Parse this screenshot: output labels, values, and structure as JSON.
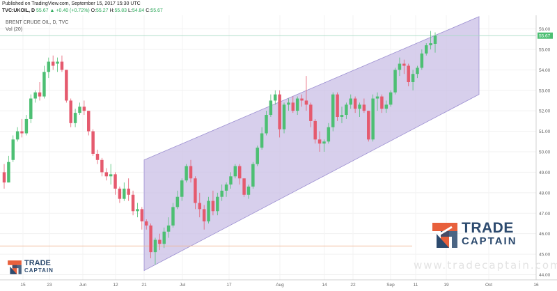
{
  "header": {
    "published": "Published on TradingView.com, September 15, 2017 15:30 UTC",
    "symbol": "TVC:UKOIL, D",
    "last": "55.67",
    "change": "+0.40 (+0.72%)",
    "o_label": "O:",
    "o_val": "55.27",
    "h_label": "H:",
    "h_val": "55.83",
    "l_label": "L:",
    "l_val": "54.84",
    "c_label": "C:",
    "c_val": "55.67"
  },
  "legend": {
    "title": "BRENT CRUDE OIL, D, TVC",
    "volume": "Vol (20)"
  },
  "brand": {
    "name_top": "TRADE",
    "name_bottom": "CAPTAIN",
    "url": "www.tradecaptain.com"
  },
  "colors": {
    "up": "#4dbf73",
    "down": "#e55a6e",
    "channel": "#c9bfe6",
    "channel_edge": "#9b8ed1",
    "price_line": "#a6d9c4",
    "support_line": "#f0b490",
    "logo_orange": "#e8603c",
    "logo_navy": "#2c4a6e"
  },
  "chart_data": {
    "type": "candlestick",
    "y_axis": {
      "min": 44,
      "max": 56,
      "ticks": [
        "44.00",
        "45.00",
        "46.00",
        "47.00",
        "48.00",
        "49.00",
        "50.00",
        "51.00",
        "52.00",
        "53.00",
        "54.00",
        "55.00",
        "56.00"
      ]
    },
    "x_ticks": [
      "15",
      "23",
      "Jun",
      "12",
      "21",
      "Jul",
      "17",
      "Aug",
      "14",
      "22",
      "Sep",
      "11",
      "19",
      "Oct",
      "16"
    ],
    "last_price_label": "55.67",
    "last_price": 55.67,
    "support_level": 45.4,
    "channel": {
      "upper": [
        {
          "date": "Jun 21",
          "price": 49.6
        },
        {
          "date": "Sep 21",
          "price": 56.6
        }
      ],
      "lower": [
        {
          "date": "Jun 21",
          "price": 44.2
        },
        {
          "date": "Sep 21",
          "price": 52.8
        }
      ]
    },
    "candles": [
      [
        49.0,
        49.4,
        48.2,
        48.5
      ],
      [
        48.5,
        49.8,
        48.5,
        49.5
      ],
      [
        49.6,
        50.8,
        49.5,
        50.6
      ],
      [
        50.6,
        51.2,
        50.5,
        51.0
      ],
      [
        51.0,
        51.6,
        50.7,
        50.9
      ],
      [
        50.9,
        51.8,
        50.8,
        51.6
      ],
      [
        51.6,
        52.8,
        51.4,
        52.6
      ],
      [
        52.6,
        53.0,
        52.4,
        52.9
      ],
      [
        52.9,
        53.4,
        52.5,
        52.7
      ],
      [
        52.7,
        54.2,
        52.6,
        53.9
      ],
      [
        53.9,
        54.6,
        53.6,
        54.4
      ],
      [
        54.4,
        54.7,
        54.0,
        54.2
      ],
      [
        54.3,
        54.6,
        53.9,
        54.4
      ],
      [
        54.4,
        54.7,
        53.9,
        54.0
      ],
      [
        54.0,
        54.0,
        52.4,
        52.5
      ],
      [
        52.5,
        52.6,
        51.2,
        51.4
      ],
      [
        51.4,
        52.1,
        51.2,
        51.9
      ],
      [
        51.9,
        52.4,
        51.8,
        52.2
      ],
      [
        52.2,
        52.5,
        51.8,
        52.0
      ],
      [
        52.0,
        52.0,
        50.8,
        51.0
      ],
      [
        51.0,
        51.1,
        49.8,
        49.9
      ],
      [
        49.9,
        50.1,
        49.4,
        49.6
      ],
      [
        49.6,
        49.7,
        48.8,
        49.0
      ],
      [
        49.0,
        49.2,
        48.6,
        48.8
      ],
      [
        48.8,
        49.4,
        48.4,
        48.9
      ],
      [
        48.9,
        49.0,
        47.9,
        48.2
      ],
      [
        48.2,
        48.3,
        47.5,
        47.7
      ],
      [
        47.7,
        48.5,
        47.6,
        48.2
      ],
      [
        48.2,
        48.7,
        47.6,
        47.9
      ],
      [
        47.9,
        48.1,
        46.9,
        47.1
      ],
      [
        47.1,
        47.5,
        46.8,
        47.2
      ],
      [
        47.2,
        47.3,
        46.2,
        46.6
      ],
      [
        46.6,
        46.7,
        46.2,
        46.4
      ],
      [
        46.4,
        46.5,
        44.8,
        45.1
      ],
      [
        45.1,
        45.8,
        44.5,
        45.7
      ],
      [
        45.7,
        46.0,
        45.2,
        45.5
      ],
      [
        45.5,
        46.3,
        45.3,
        46.1
      ],
      [
        46.1,
        46.8,
        45.8,
        46.4
      ],
      [
        46.4,
        47.5,
        46.3,
        47.3
      ],
      [
        47.3,
        48.1,
        47.2,
        47.8
      ],
      [
        47.8,
        48.7,
        47.6,
        48.6
      ],
      [
        48.6,
        49.4,
        48.5,
        49.3
      ],
      [
        49.3,
        49.6,
        48.5,
        48.7
      ],
      [
        48.7,
        48.8,
        47.2,
        47.5
      ],
      [
        47.5,
        48.0,
        46.8,
        47.2
      ],
      [
        47.2,
        47.4,
        46.2,
        46.6
      ],
      [
        46.6,
        47.8,
        46.5,
        47.6
      ],
      [
        47.6,
        48.1,
        46.9,
        47.1
      ],
      [
        47.1,
        48.0,
        46.9,
        47.8
      ],
      [
        47.8,
        48.4,
        47.6,
        48.1
      ],
      [
        48.1,
        48.5,
        47.8,
        48.4
      ],
      [
        48.4,
        49.0,
        48.2,
        48.8
      ],
      [
        48.8,
        49.4,
        48.7,
        49.3
      ],
      [
        49.3,
        49.4,
        48.4,
        48.7
      ],
      [
        48.7,
        48.7,
        47.8,
        47.9
      ],
      [
        47.9,
        48.4,
        47.7,
        48.3
      ],
      [
        48.3,
        49.5,
        48.2,
        49.4
      ],
      [
        49.4,
        50.3,
        49.3,
        50.2
      ],
      [
        50.2,
        51.2,
        50.1,
        50.9
      ],
      [
        50.9,
        52.0,
        50.8,
        51.8
      ],
      [
        51.8,
        52.8,
        51.7,
        52.5
      ],
      [
        52.5,
        53.0,
        52.3,
        52.8
      ],
      [
        52.8,
        53.0,
        50.7,
        51.1
      ],
      [
        51.1,
        52.4,
        50.9,
        52.3
      ],
      [
        52.3,
        52.6,
        52.0,
        52.4
      ],
      [
        52.4,
        52.7,
        51.9,
        52.0
      ],
      [
        52.0,
        52.7,
        51.8,
        52.6
      ],
      [
        52.6,
        52.8,
        52.2,
        52.5
      ],
      [
        52.5,
        53.7,
        52.0,
        52.3
      ],
      [
        52.3,
        52.4,
        51.2,
        51.5
      ],
      [
        51.5,
        51.6,
        50.4,
        50.6
      ],
      [
        50.6,
        51.0,
        50.0,
        50.4
      ],
      [
        50.4,
        50.6,
        50.0,
        50.5
      ],
      [
        50.5,
        51.4,
        50.4,
        51.2
      ],
      [
        51.2,
        52.9,
        51.0,
        52.8
      ],
      [
        52.8,
        52.9,
        51.5,
        51.7
      ],
      [
        51.7,
        52.2,
        51.4,
        51.8
      ],
      [
        51.8,
        52.4,
        51.6,
        52.3
      ],
      [
        52.3,
        52.8,
        52.1,
        52.6
      ],
      [
        52.6,
        52.7,
        51.9,
        52.1
      ],
      [
        52.1,
        52.4,
        51.7,
        52.3
      ],
      [
        52.3,
        52.6,
        51.9,
        52.0
      ],
      [
        52.0,
        52.0,
        50.5,
        50.6
      ],
      [
        50.6,
        52.8,
        50.5,
        52.6
      ],
      [
        52.6,
        52.9,
        52.0,
        52.7
      ],
      [
        52.7,
        52.8,
        51.9,
        52.1
      ],
      [
        52.1,
        52.5,
        51.9,
        52.3
      ],
      [
        52.3,
        53.0,
        52.2,
        52.9
      ],
      [
        52.9,
        54.1,
        52.8,
        54.0
      ],
      [
        54.0,
        54.6,
        53.7,
        54.3
      ],
      [
        54.3,
        54.5,
        53.8,
        54.2
      ],
      [
        54.2,
        54.3,
        53.2,
        53.4
      ],
      [
        53.4,
        54.0,
        53.0,
        53.8
      ],
      [
        53.8,
        54.2,
        53.6,
        54.1
      ],
      [
        54.1,
        55.0,
        54.0,
        54.8
      ],
      [
        54.8,
        55.3,
        54.7,
        55.2
      ],
      [
        55.2,
        55.9,
        55.0,
        55.3
      ],
      [
        55.27,
        55.83,
        54.84,
        55.67
      ]
    ]
  }
}
